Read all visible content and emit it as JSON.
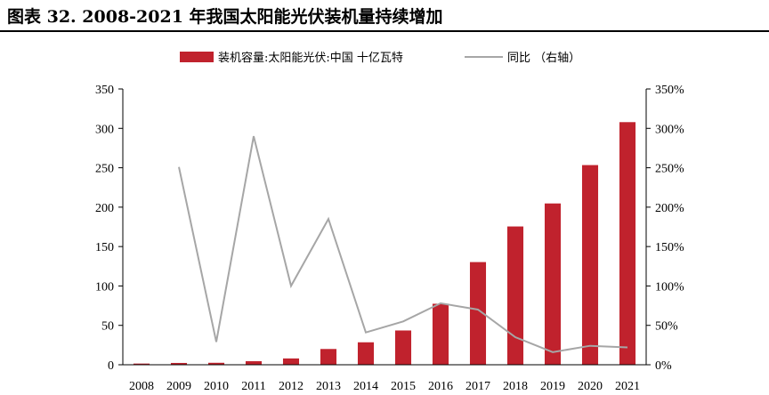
{
  "title": "图表 32. 2008-2021 年我国太阳能光伏装机量持续增加",
  "colors": {
    "bar": "#c0222d",
    "line": "#a6a6a6",
    "axis": "#000000"
  },
  "chart_data": {
    "type": "bar",
    "categories": [
      "2008",
      "2009",
      "2010",
      "2011",
      "2012",
      "2013",
      "2014",
      "2015",
      "2016",
      "2017",
      "2018",
      "2019",
      "2020",
      "2021"
    ],
    "series": [
      {
        "name": "装机容量:太阳能光伏:中国 十亿瓦特",
        "type": "bar",
        "axis": "left",
        "values": [
          1.5,
          2.3,
          2.5,
          4.5,
          8,
          20,
          28.5,
          43.5,
          77.4,
          130.3,
          175.5,
          204.7,
          253.4,
          307.9
        ]
      },
      {
        "name": "同比 （右轴）",
        "type": "line",
        "axis": "right",
        "values": [
          null,
          251,
          29,
          290,
          100,
          185,
          41,
          55,
          78,
          70,
          35,
          16,
          24,
          22
        ]
      }
    ],
    "left_axis": {
      "ylim": [
        0,
        350
      ],
      "ticks": [
        "0",
        "50",
        "100",
        "150",
        "200",
        "250",
        "300",
        "350"
      ]
    },
    "right_axis": {
      "ylim": [
        0,
        350
      ],
      "ticks": [
        "0%",
        "50%",
        "100%",
        "150%",
        "200%",
        "250%",
        "300%",
        "350%"
      ]
    },
    "legend_position": "top"
  }
}
